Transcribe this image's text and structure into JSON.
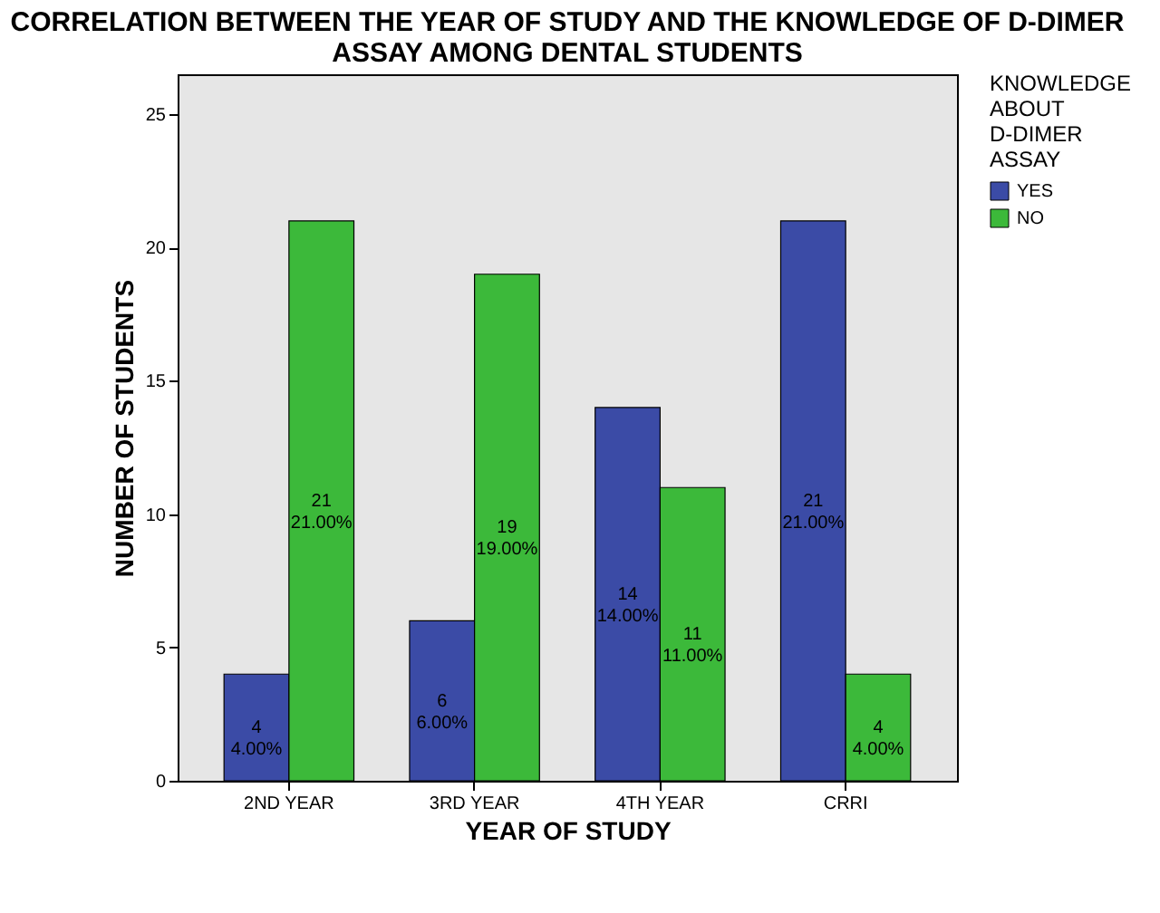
{
  "chart_data": {
    "type": "bar",
    "title": "CORRELATION BETWEEN THE YEAR OF STUDY AND THE KNOWLEDGE OF D-DIMER ASSAY AMONG DENTAL STUDENTS",
    "xlabel": "YEAR OF STUDY",
    "ylabel": "NUMBER OF STUDENTS",
    "legend_title": "KNOWLEDGE ABOUT D-DIMER ASSAY",
    "categories": [
      "2ND YEAR",
      "3RD YEAR",
      "4TH YEAR",
      "CRRI"
    ],
    "series": [
      {
        "name": "YES",
        "color": "#3b4ba6",
        "values": [
          4,
          6,
          14,
          21
        ],
        "value_labels": [
          "4\n4.00%",
          "6\n6.00%",
          "14\n14.00%",
          "21\n21.00%"
        ]
      },
      {
        "name": "NO",
        "color": "#3cb93a",
        "values": [
          21,
          19,
          11,
          4
        ],
        "value_labels": [
          "21\n21.00%",
          "19\n19.00%",
          "11\n11.00%",
          "4\n4.00%"
        ]
      }
    ],
    "ylim": [
      0,
      26.5
    ],
    "yticks": [
      0,
      5,
      10,
      15,
      20,
      25
    ],
    "legend": "top right",
    "grid": false
  }
}
